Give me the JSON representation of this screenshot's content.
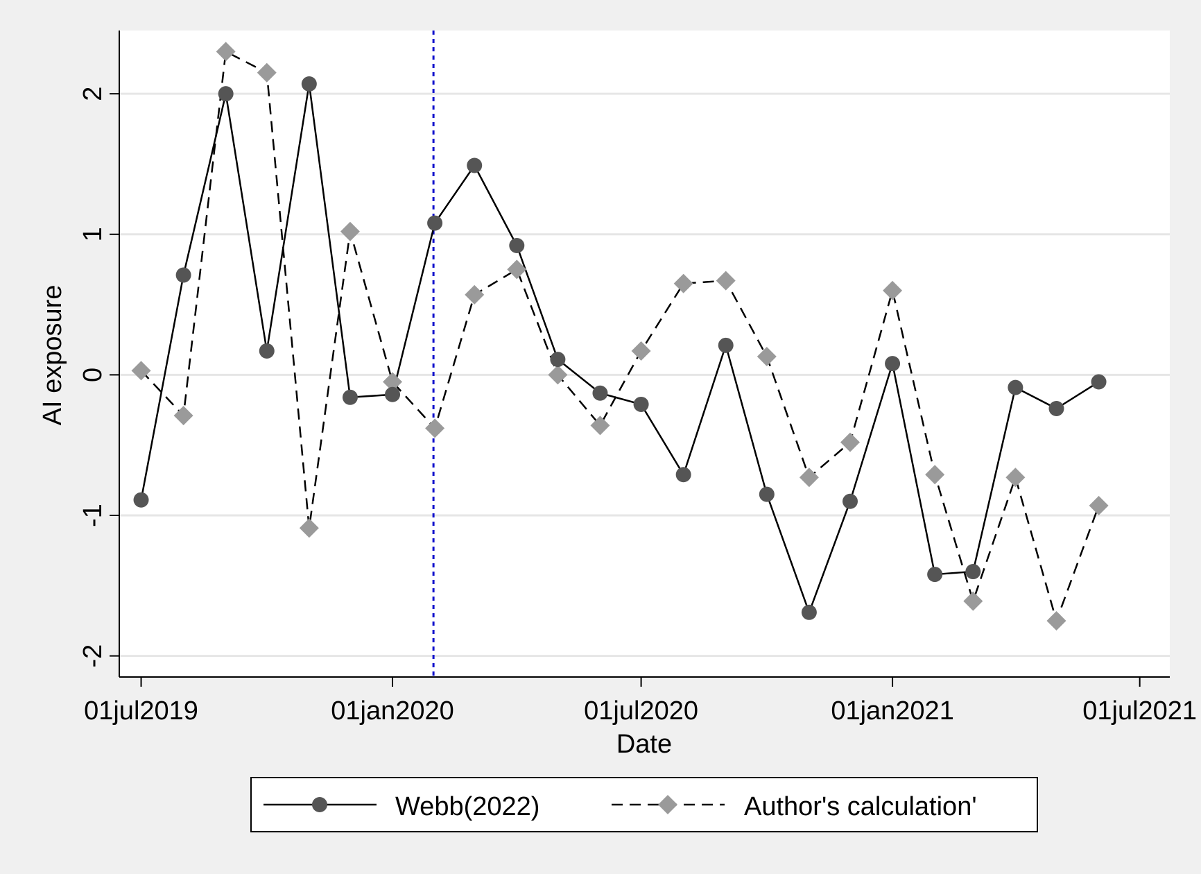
{
  "chart_data": {
    "type": "line",
    "title": "",
    "xlabel": "Date",
    "ylabel": "AI exposure",
    "xlim": [
      "2019-06-15",
      "2021-07-23"
    ],
    "ylim": [
      -2.15,
      2.45
    ],
    "x_ticks": [
      {
        "date": "2019-07-01",
        "label": "01jul2019"
      },
      {
        "date": "2020-01-01",
        "label": "01jan2020"
      },
      {
        "date": "2020-07-01",
        "label": "01jul2020"
      },
      {
        "date": "2021-01-01",
        "label": "01jan2021"
      },
      {
        "date": "2021-07-01",
        "label": "01jul2021"
      }
    ],
    "y_ticks": [
      {
        "value": 2,
        "label": "2"
      },
      {
        "value": 1,
        "label": "1"
      },
      {
        "value": 0,
        "label": "0"
      },
      {
        "value": -1,
        "label": "-1"
      },
      {
        "value": -2,
        "label": "-2"
      }
    ],
    "grid": "horizontal",
    "vertical_marker": {
      "date": "2020-01-31",
      "color": "#1010cc",
      "style": "dotted"
    },
    "x": [
      "2019-07-01",
      "2019-08-01",
      "2019-09-01",
      "2019-10-01",
      "2019-11-01",
      "2019-12-01",
      "2020-01-01",
      "2020-02-01",
      "2020-03-01",
      "2020-04-01",
      "2020-05-01",
      "2020-06-01",
      "2020-07-01",
      "2020-08-01",
      "2020-09-01",
      "2020-10-01",
      "2020-11-01",
      "2020-12-01",
      "2021-01-01",
      "2021-02-01",
      "2021-03-01",
      "2021-04-01",
      "2021-05-01",
      "2021-06-01"
    ],
    "series": [
      {
        "name": "Webb(2022)",
        "style": "solid",
        "marker": "circle",
        "color": "#555555",
        "values": [
          -0.89,
          0.71,
          2.0,
          0.17,
          2.07,
          -0.16,
          -0.14,
          1.08,
          1.49,
          0.92,
          0.11,
          -0.13,
          -0.21,
          -0.71,
          0.21,
          -0.85,
          -1.69,
          -0.9,
          0.08,
          -1.42,
          -1.4,
          -0.09,
          -0.24,
          -0.05
        ]
      },
      {
        "name": "Author's calculation'",
        "style": "dashed",
        "marker": "diamond",
        "color": "#9a9a9a",
        "values": [
          0.03,
          -0.29,
          2.3,
          2.15,
          -1.09,
          1.02,
          -0.05,
          -0.38,
          0.57,
          0.75,
          0.0,
          -0.36,
          0.17,
          0.65,
          0.67,
          0.13,
          -0.73,
          -0.48,
          0.6,
          -0.71,
          -1.61,
          -0.73,
          -1.75,
          -0.93
        ]
      }
    ],
    "legend": {
      "position": "bottom-center",
      "frame": true
    }
  }
}
